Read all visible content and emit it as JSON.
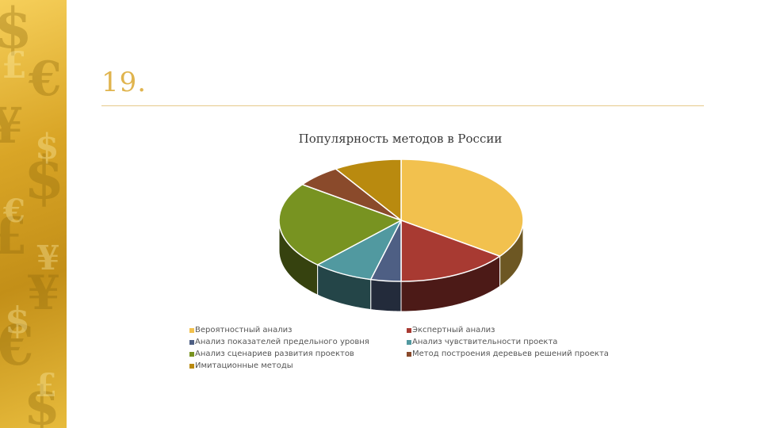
{
  "slide": {
    "title": "19."
  },
  "chart_data": {
    "type": "pie",
    "title": "Популярность методов в России",
    "legend_position": "bottom",
    "categories": [
      "Вероятностный анализ",
      "Экспертный анализ",
      "Анализ показателей предельного уровня",
      "Анализ чувствительности проекта",
      "Анализ сценариев развития проектов",
      "Метод построения деревьев решений проекта",
      "Имитационные методы"
    ],
    "values": [
      35,
      15,
      4,
      8,
      23,
      6,
      9
    ],
    "colors": [
      "#F2C14E",
      "#A83A32",
      "#4E5F84",
      "#5199A0",
      "#789321",
      "#8A4A2B",
      "#B98A0F"
    ]
  }
}
